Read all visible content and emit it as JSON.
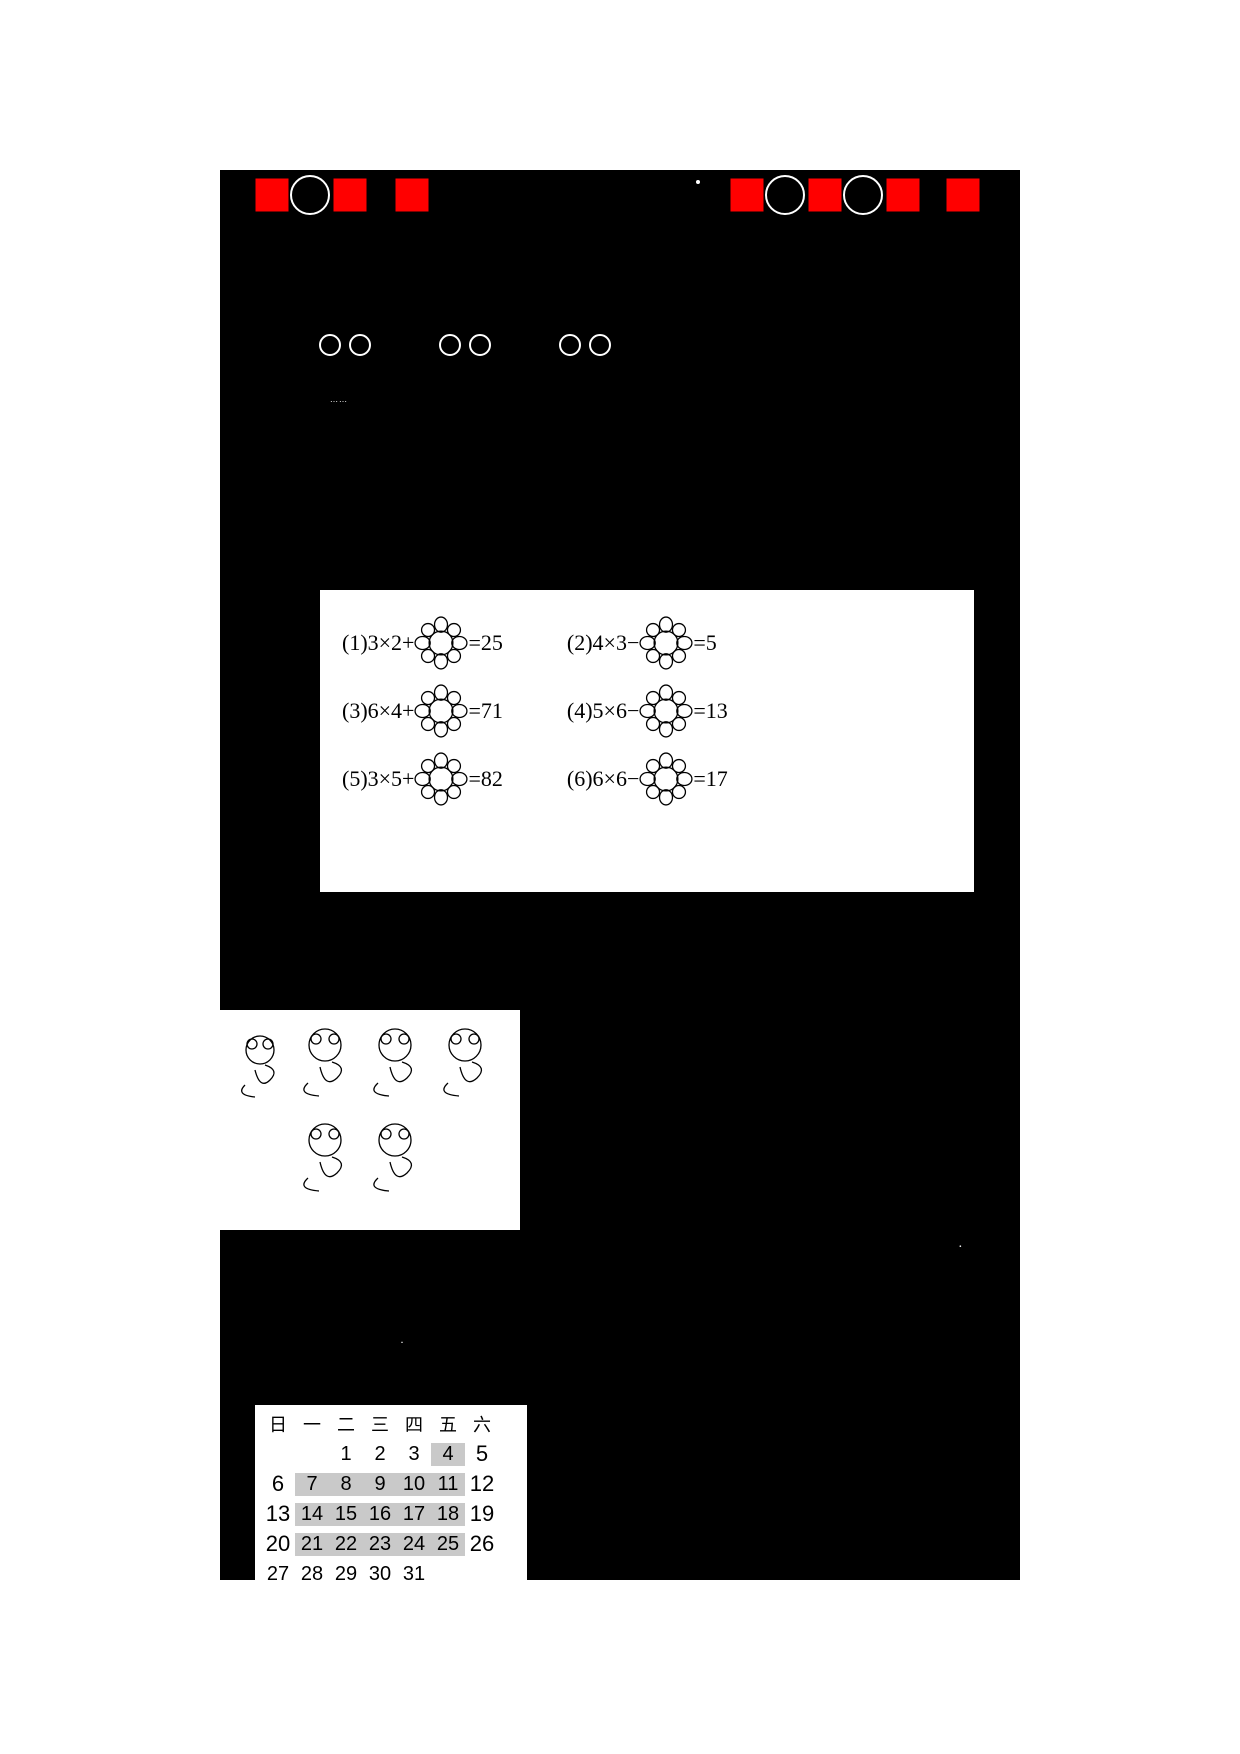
{
  "equations": {
    "e1_left": "(1)3×2+",
    "e1_right": "=25",
    "e2_left": "(2)4×3−",
    "e2_right": "=5",
    "e3_left": "(3)6×4+",
    "e3_right": "=71",
    "e4_left": "(4)5×6−",
    "e4_right": "=13",
    "e5_left": "(5)3×5+",
    "e5_right": "=82",
    "e6_left": "(6)6×6−",
    "e6_right": "=17"
  },
  "calendar": {
    "headers": [
      "日",
      "一",
      "二",
      "三",
      "四",
      "五",
      "六"
    ],
    "rows": [
      [
        "",
        "",
        "1",
        "2",
        "3",
        "4",
        "5"
      ],
      [
        "6",
        "7",
        "8",
        "9",
        "10",
        "11",
        "12"
      ],
      [
        "13",
        "14",
        "15",
        "16",
        "17",
        "18",
        "19"
      ],
      [
        "20",
        "21",
        "22",
        "23",
        "24",
        "25",
        "26"
      ],
      [
        "27",
        "28",
        "29",
        "30",
        "31",
        "",
        ""
      ]
    ],
    "shaded_positions": [
      [
        0,
        5
      ],
      [
        1,
        1
      ],
      [
        1,
        2
      ],
      [
        1,
        3
      ],
      [
        1,
        4
      ],
      [
        1,
        5
      ],
      [
        2,
        1
      ],
      [
        2,
        2
      ],
      [
        2,
        3
      ],
      [
        2,
        4
      ],
      [
        2,
        5
      ],
      [
        3,
        1
      ],
      [
        3,
        2
      ],
      [
        3,
        3
      ],
      [
        3,
        4
      ],
      [
        3,
        5
      ]
    ],
    "big_positions": [
      [
        0,
        6
      ],
      [
        1,
        0
      ],
      [
        1,
        6
      ],
      [
        2,
        0
      ],
      [
        2,
        6
      ],
      [
        3,
        0
      ],
      [
        3,
        6
      ]
    ]
  },
  "colors": {
    "black": "#000000",
    "white": "#ffffff",
    "grey": "#c9c9c9"
  },
  "small_text": "……",
  "dot": "·"
}
